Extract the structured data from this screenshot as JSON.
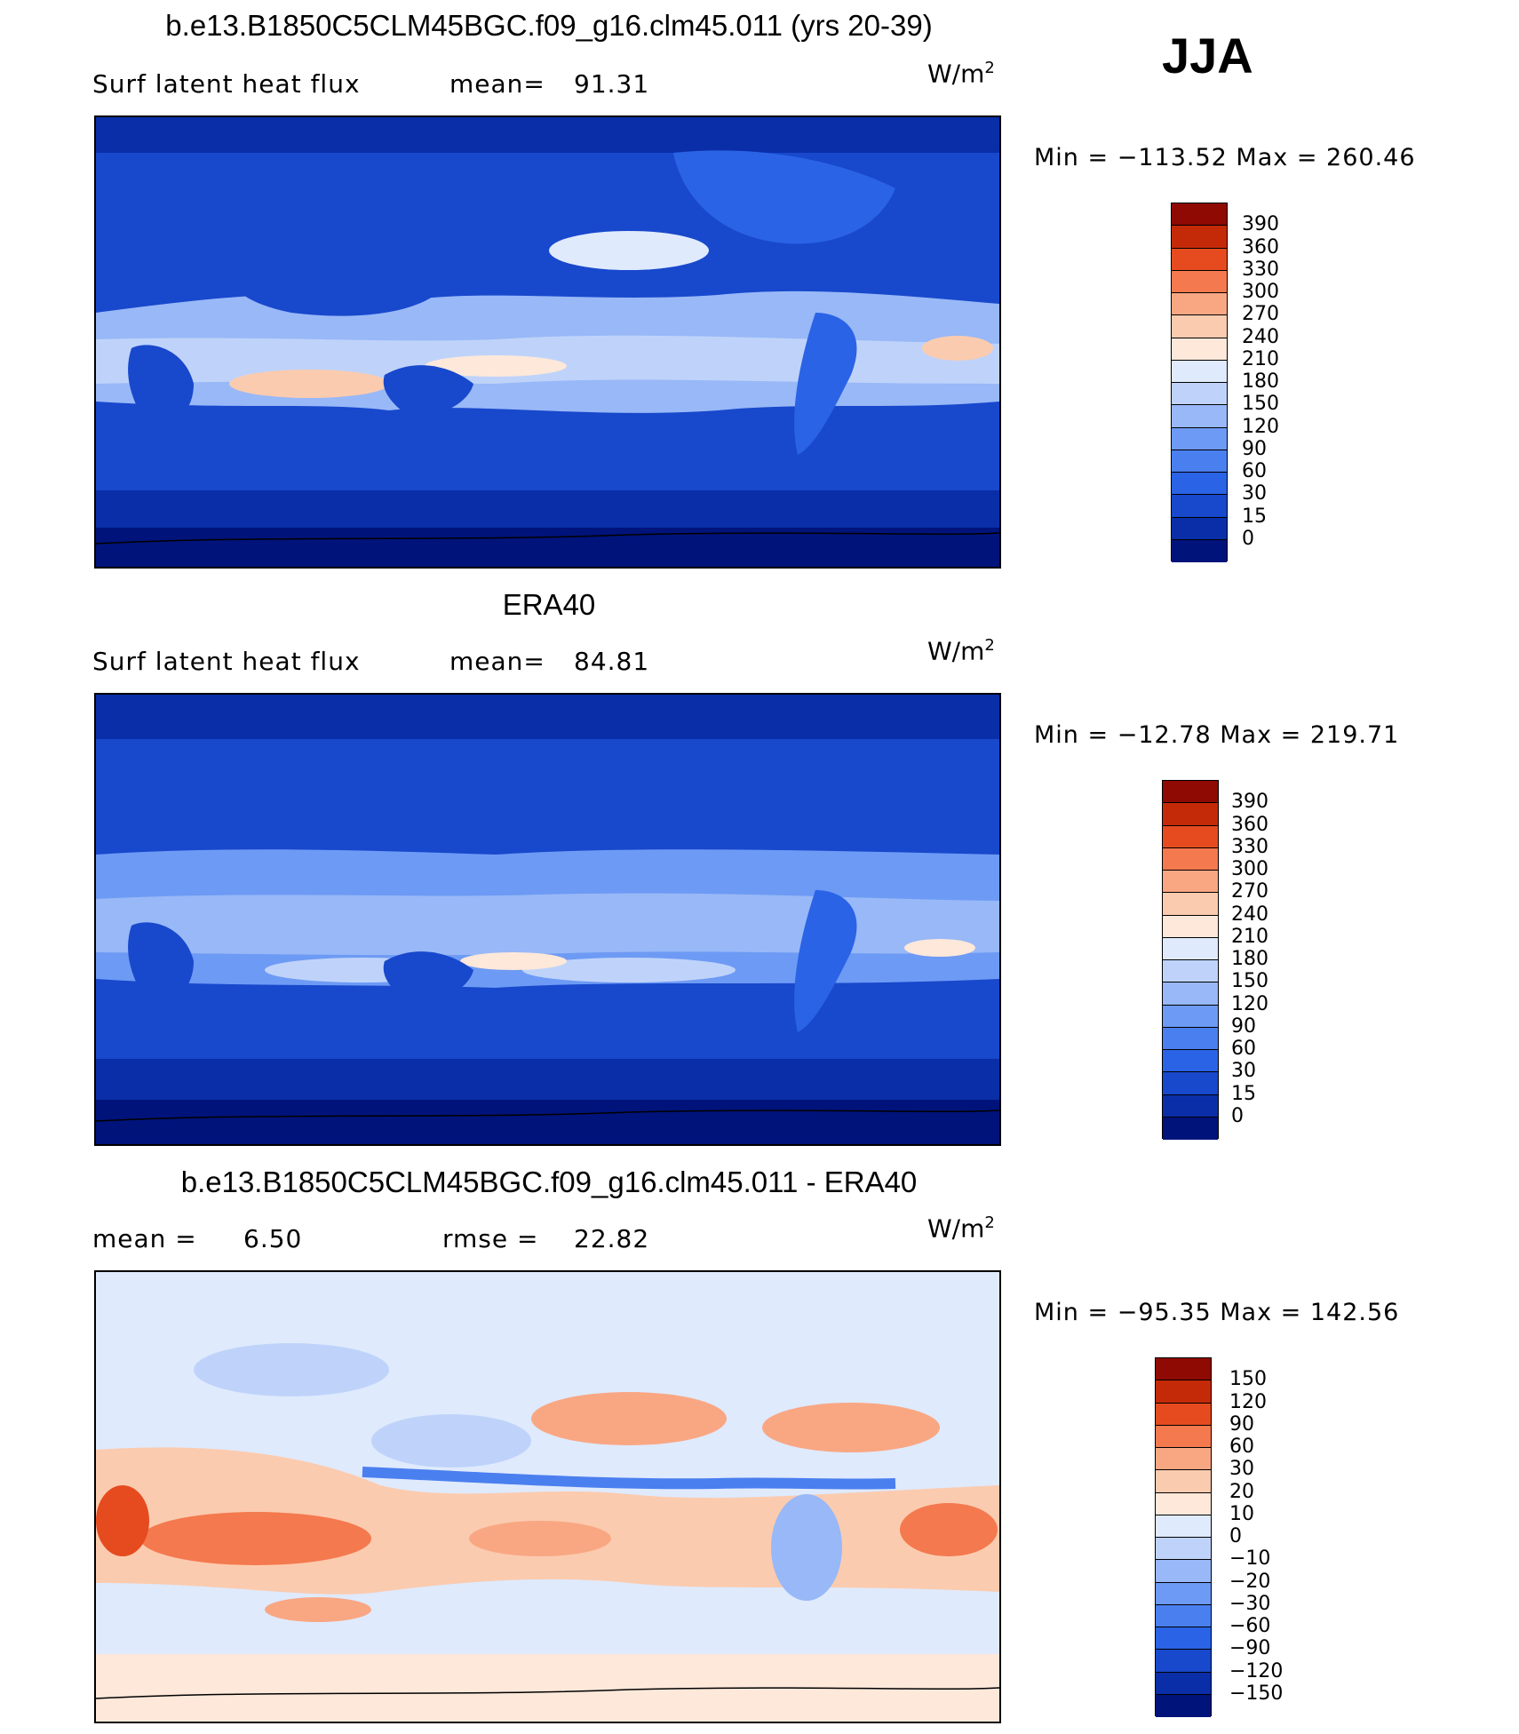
{
  "season": "JJA",
  "colors": {
    "abs_scale": [
      "#00137a",
      "#0a2ea8",
      "#1848cc",
      "#2a63e6",
      "#4a7fef",
      "#6d9af4",
      "#98b8f7",
      "#bfd3fa",
      "#dfeafd",
      "#fde8da",
      "#fbcbaf",
      "#f9a783",
      "#f4794f",
      "#e54b1f",
      "#c52a08",
      "#8e0a03"
    ],
    "diff_scale": [
      "#00137a",
      "#0a2ea8",
      "#1848cc",
      "#2a63e6",
      "#4a7fef",
      "#6d9af4",
      "#98b8f7",
      "#bfd3fa",
      "#dfeafd",
      "#fde8da",
      "#fbcbaf",
      "#f9a783",
      "#f4794f",
      "#e54b1f",
      "#c52a08",
      "#8e0a03"
    ]
  },
  "panels": [
    {
      "title": "b.e13.B1850C5CLM45BGC.f09_g16.clm45.011 (yrs 20-39)",
      "left_label": "Surf latent heat flux",
      "stat_label": "mean=",
      "stat_value": "91.31",
      "unit": "W/m",
      "unit_exp": "2",
      "min_label": "Min",
      "min_value": "−113.52",
      "max_label": "Max",
      "max_value": "260.46",
      "levels": [
        "390",
        "360",
        "330",
        "300",
        "270",
        "240",
        "210",
        "180",
        "150",
        "120",
        "90",
        "60",
        "30",
        "15",
        "0"
      ]
    },
    {
      "title": "ERA40",
      "left_label": "Surf latent heat flux",
      "stat_label": "mean=",
      "stat_value": "84.81",
      "unit": "W/m",
      "unit_exp": "2",
      "min_label": "Min",
      "min_value": "−12.78",
      "max_label": "Max",
      "max_value": "219.71",
      "levels": [
        "390",
        "360",
        "330",
        "300",
        "270",
        "240",
        "210",
        "180",
        "150",
        "120",
        "90",
        "60",
        "30",
        "15",
        "0"
      ]
    },
    {
      "title": "b.e13.B1850C5CLM45BGC.f09_g16.clm45.011 - ERA40",
      "left_label": "mean =",
      "left_value": "6.50",
      "stat_label": "rmse =",
      "stat_value": "22.82",
      "unit": "W/m",
      "unit_exp": "2",
      "min_label": "Min",
      "min_value": "−95.35",
      "max_label": "Max",
      "max_value": "142.56",
      "levels": [
        "150",
        "120",
        "90",
        "60",
        "30",
        "20",
        "10",
        "0",
        "−10",
        "−20",
        "−30",
        "−60",
        "−90",
        "−120",
        "−150"
      ]
    }
  ]
}
